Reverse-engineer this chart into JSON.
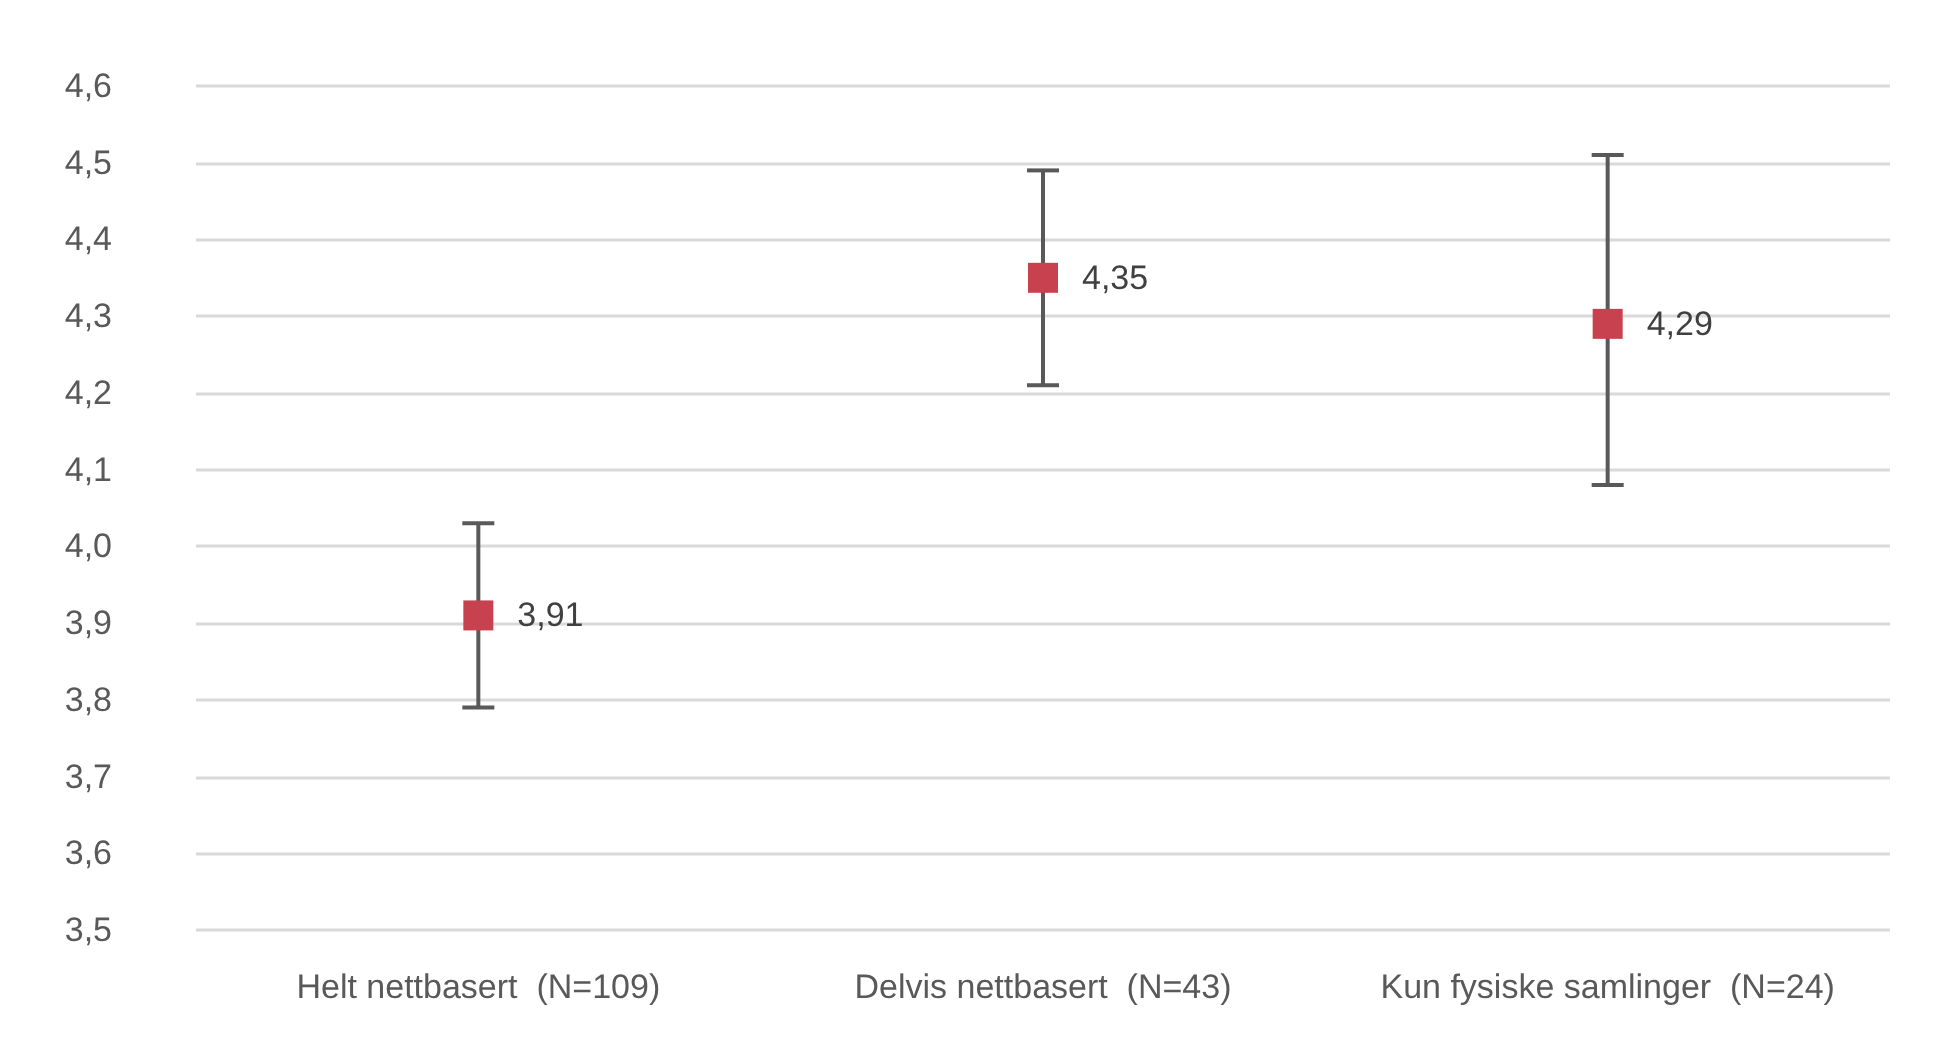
{
  "chart_data": {
    "type": "scatter",
    "categories": [
      "Helt nettbasert  (N=109)",
      "Delvis nettbasert  (N=43)",
      "Kun fysiske samlinger  (N=24)"
    ],
    "values": [
      3.91,
      4.35,
      4.29
    ],
    "errors": [
      [
        3.79,
        4.03
      ],
      [
        4.21,
        4.49
      ],
      [
        4.08,
        4.51
      ]
    ],
    "value_labels": [
      "3,91",
      "4,35",
      "4,29"
    ],
    "color": "#c8414f",
    "marker": "square",
    "grid": "y",
    "ylim": [
      3.5,
      4.6
    ],
    "yticks": [
      {
        "value": 3.5,
        "label": "3,5"
      },
      {
        "value": 3.6,
        "label": "3,6"
      },
      {
        "value": 3.7,
        "label": "3,7"
      },
      {
        "value": 3.8,
        "label": "3,8"
      },
      {
        "value": 3.9,
        "label": "3,9"
      },
      {
        "value": 4.0,
        "label": "4,0"
      },
      {
        "value": 4.1,
        "label": "4,1"
      },
      {
        "value": 4.2,
        "label": "4,2"
      },
      {
        "value": 4.3,
        "label": "4,3"
      },
      {
        "value": 4.4,
        "label": "4,4"
      },
      {
        "value": 4.5,
        "label": "4,5"
      },
      {
        "value": 4.6,
        "label": "4,6"
      }
    ]
  }
}
